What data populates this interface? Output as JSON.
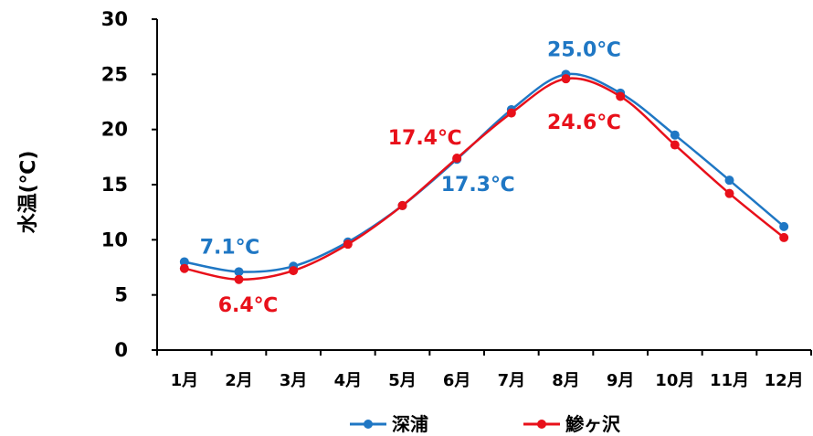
{
  "chart_data": {
    "type": "line",
    "categories": [
      "1月",
      "2月",
      "3月",
      "4月",
      "5月",
      "6月",
      "7月",
      "8月",
      "9月",
      "10月",
      "11月",
      "12月"
    ],
    "ylabel": "水温(℃)",
    "ylim": [
      0,
      30
    ],
    "yticks": [
      0,
      5,
      10,
      15,
      20,
      25,
      30
    ],
    "grid": false,
    "legend_position": "bottom",
    "series": [
      {
        "name": "深浦",
        "color": "#1f77c4",
        "values": [
          8.0,
          7.1,
          7.6,
          9.8,
          13.1,
          17.3,
          21.8,
          25.0,
          23.3,
          19.5,
          15.4,
          11.2
        ]
      },
      {
        "name": "鯵ヶ沢",
        "color": "#e8101a",
        "values": [
          7.4,
          6.4,
          7.2,
          9.6,
          13.1,
          17.4,
          21.5,
          24.6,
          23.0,
          18.6,
          14.2,
          10.2
        ]
      }
    ],
    "annotations": [
      {
        "text": "7.1℃",
        "series": 0,
        "color": "#1f77c4"
      },
      {
        "text": "6.4℃",
        "series": 1,
        "color": "#e8101a"
      },
      {
        "text": "17.4℃",
        "series": 1,
        "color": "#e8101a"
      },
      {
        "text": "17.3℃",
        "series": 0,
        "color": "#1f77c4"
      },
      {
        "text": "25.0℃",
        "series": 0,
        "color": "#1f77c4"
      },
      {
        "text": "24.6℃",
        "series": 1,
        "color": "#e8101a"
      }
    ]
  }
}
